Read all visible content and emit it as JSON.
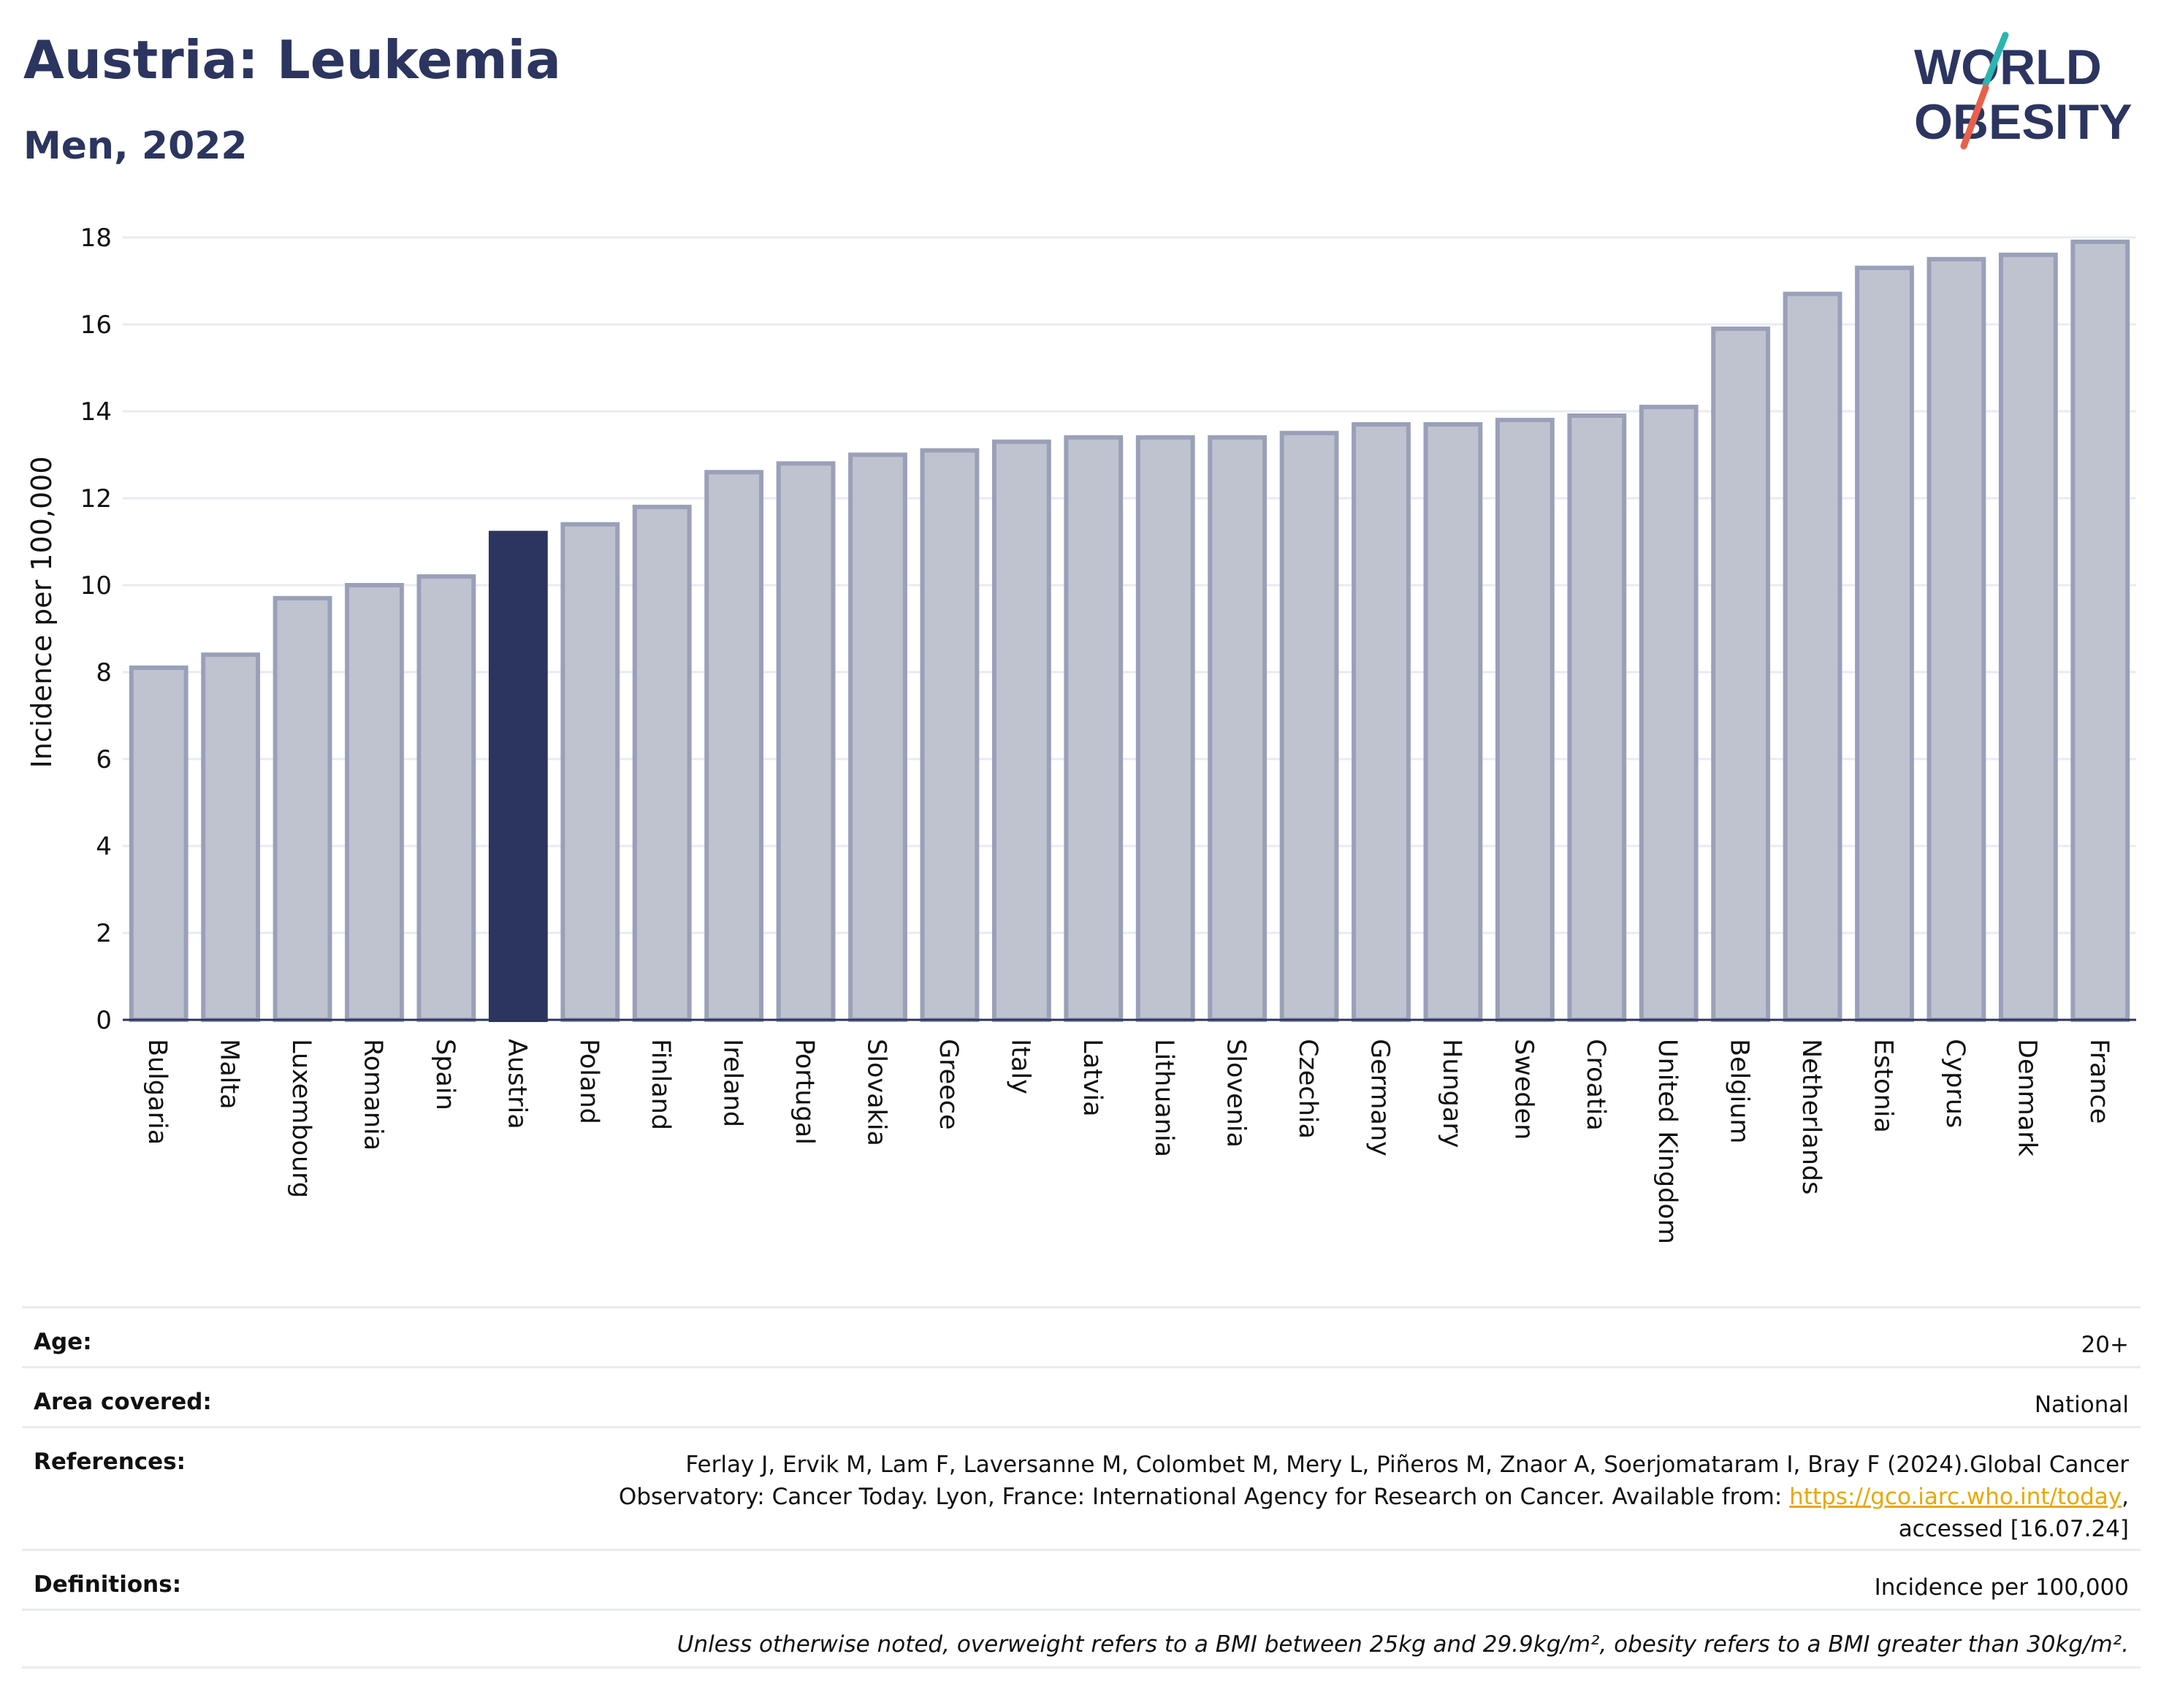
{
  "header": {
    "title": "Austria: Leukemia",
    "subtitle": "Men, 2022",
    "logo_line1": "WORLD",
    "logo_line2": "OBESITY"
  },
  "colors": {
    "highlight_bar": "#2b3560",
    "bar_fill": "#bfc3d0",
    "bar_stroke": "#9aa0b8",
    "text": "#2b3560",
    "grid": "#e8ebf4",
    "link": "#e8a800",
    "logo_slash_top": "#2bb5b0",
    "logo_slash_bottom": "#e8604c"
  },
  "chart_data": {
    "type": "bar",
    "title": "Austria: Leukemia",
    "subtitle": "Men, 2022",
    "xlabel": "",
    "ylabel": "Incidence per 100,000",
    "ylim": [
      0,
      18
    ],
    "yticks": [
      0,
      2,
      4,
      6,
      8,
      10,
      12,
      14,
      16,
      18
    ],
    "grid": true,
    "highlight": "Austria",
    "categories": [
      "Bulgaria",
      "Malta",
      "Luxembourg",
      "Romania",
      "Spain",
      "Austria",
      "Poland",
      "Finland",
      "Ireland",
      "Portugal",
      "Slovakia",
      "Greece",
      "Italy",
      "Latvia",
      "Lithuania",
      "Slovenia",
      "Czechia",
      "Germany",
      "Hungary",
      "Sweden",
      "Croatia",
      "United Kingdom",
      "Belgium",
      "Netherlands",
      "Estonia",
      "Cyprus",
      "Denmark",
      "France"
    ],
    "values": [
      8.1,
      8.4,
      9.7,
      10.0,
      10.2,
      11.2,
      11.4,
      11.8,
      12.6,
      12.8,
      13.0,
      13.1,
      13.3,
      13.4,
      13.4,
      13.4,
      13.5,
      13.7,
      13.7,
      13.8,
      13.9,
      14.1,
      15.9,
      16.7,
      17.3,
      17.5,
      17.6,
      17.9
    ]
  },
  "meta": {
    "age_label": "Age:",
    "age_value": "20+",
    "area_label": "Area covered:",
    "area_value": "National",
    "ref_label": "References:",
    "ref_text_1": "Ferlay J, Ervik M, Lam F, Laversanne M, Colombet M, Mery L, Piñeros M, Znaor A, Soerjomataram I, Bray F (2024).Global Cancer",
    "ref_text_2": "Observatory: Cancer Today. Lyon, France: International Agency for Research on Cancer. Available from:",
    "ref_link": "https://gco.iarc.who.int/today",
    "ref_text_3": "accessed [16.07.24]",
    "def_label": "Definitions:",
    "def_value": "Incidence per 100,000",
    "note": "Unless otherwise noted, overweight refers to a BMI between 25kg and 29.9kg/m², obesity refers to a BMI greater than 30kg/m²."
  }
}
